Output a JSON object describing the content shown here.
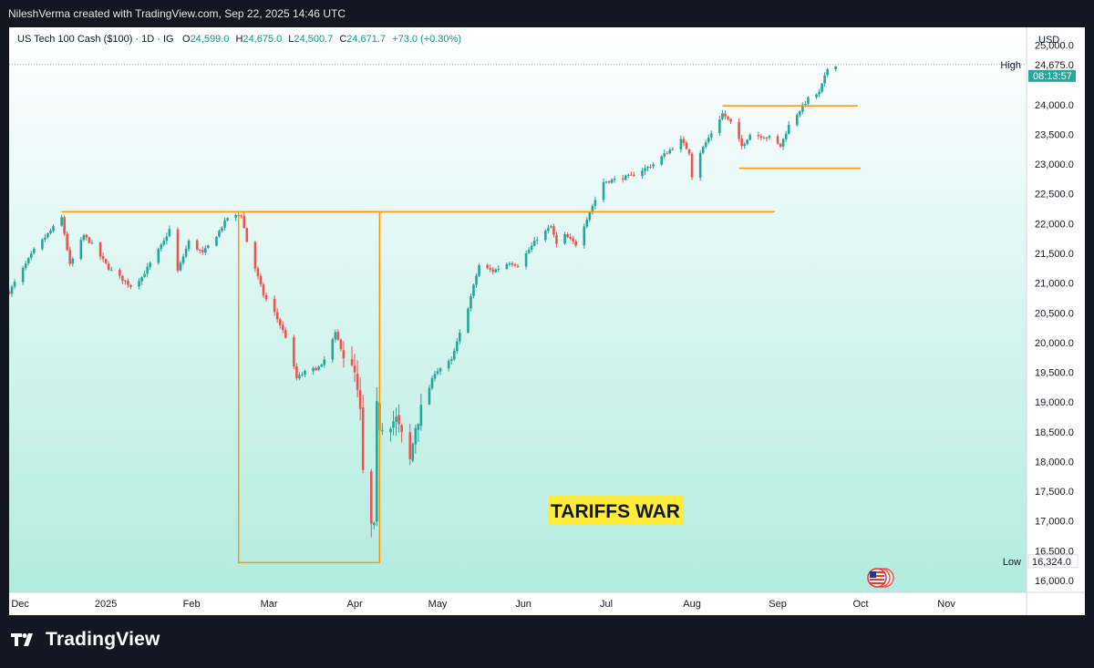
{
  "header": {
    "attribution": "NileshVerma created with TradingView.com, Sep 22, 2025 14:46 UTC"
  },
  "legend": {
    "symbol": "US Tech 100 Cash ($100) · 1D · IG",
    "open_label": "O",
    "open": "24,599.0",
    "high_label": "H",
    "high": "24,675.0",
    "low_label": "L",
    "low": "24,500.7",
    "close_label": "C",
    "close": "24,671.7",
    "change": "+73.0 (+0.30%)"
  },
  "price_scale": {
    "currency": "USD",
    "ticks": [
      "25,000.0",
      "24,000.0",
      "23,500.0",
      "23,000.0",
      "22,500.0",
      "22,000.0",
      "21,500.0",
      "21,000.0",
      "20,500.0",
      "20,000.0",
      "19,500.0",
      "19,000.0",
      "18,500.0",
      "18,000.0",
      "17,500.0",
      "17,000.0",
      "16,500.0",
      "16,000.0"
    ],
    "high_label": "High",
    "high_value": "24,675.0",
    "countdown": "08:13:57",
    "low_label": "Low",
    "low_value": "16,324.0"
  },
  "time_axis": {
    "labels": [
      "Dec",
      "2025",
      "Feb",
      "Mar",
      "Apr",
      "May",
      "Jun",
      "Jul",
      "Aug",
      "Sep",
      "Oct",
      "Nov"
    ]
  },
  "annotation": {
    "text": "TARIFFS WAR"
  },
  "footer": {
    "brand": "TradingView"
  },
  "colors": {
    "up": "#26a69a",
    "down": "#ef5350",
    "drawing": "#ff9800",
    "annotation_bg": "#ffeb3b",
    "badge": "#26a69a",
    "bg_top": "#ffffff",
    "bg_bottom": "#b2ebe0"
  },
  "chart_data": {
    "type": "candlestick",
    "x_range": [
      "2024-11-27",
      "2025-11-30"
    ],
    "y_range": [
      15800,
      25300
    ],
    "anchors": [
      [
        "2024-11-27",
        20850
      ],
      [
        "2024-12-06",
        21550
      ],
      [
        "2024-12-16",
        22100
      ],
      [
        "2024-12-19",
        21300
      ],
      [
        "2024-12-24",
        21800
      ],
      [
        "2024-12-27",
        21650
      ],
      [
        "2025-01-02",
        21250
      ],
      [
        "2025-01-10",
        20950
      ],
      [
        "2025-01-14",
        21100
      ],
      [
        "2025-01-22",
        21700
      ],
      [
        "2025-01-24",
        21900
      ],
      [
        "2025-01-27",
        21200
      ],
      [
        "2025-01-31",
        21700
      ],
      [
        "2025-02-05",
        21500
      ],
      [
        "2025-02-10",
        21800
      ],
      [
        "2025-02-14",
        22100
      ],
      [
        "2025-02-19",
        22150
      ],
      [
        "2025-02-21",
        21700
      ],
      [
        "2025-02-27",
        20800
      ],
      [
        "2025-03-03",
        20500
      ],
      [
        "2025-03-07",
        20100
      ],
      [
        "2025-03-11",
        19400
      ],
      [
        "2025-03-14",
        19500
      ],
      [
        "2025-03-20",
        19600
      ],
      [
        "2025-03-25",
        20150
      ],
      [
        "2025-03-28",
        19800
      ],
      [
        "2025-04-01",
        19450
      ],
      [
        "2025-04-03",
        18800
      ],
      [
        "2025-04-04",
        17800
      ],
      [
        "2025-04-07",
        16900
      ],
      [
        "2025-04-08",
        16850
      ],
      [
        "2025-04-09",
        18900
      ],
      [
        "2025-04-10",
        18600
      ],
      [
        "2025-04-16",
        18700
      ],
      [
        "2025-04-21",
        18000
      ],
      [
        "2025-04-23",
        18600
      ],
      [
        "2025-04-30",
        19500
      ],
      [
        "2025-05-06",
        19700
      ],
      [
        "2025-05-12",
        20600
      ],
      [
        "2025-05-16",
        21300
      ],
      [
        "2025-05-21",
        21200
      ],
      [
        "2025-05-27",
        21350
      ],
      [
        "2025-05-30",
        21300
      ],
      [
        "2025-06-06",
        21750
      ],
      [
        "2025-06-11",
        21950
      ],
      [
        "2025-06-13",
        21650
      ],
      [
        "2025-06-16",
        21800
      ],
      [
        "2025-06-20",
        21650
      ],
      [
        "2025-06-25",
        22200
      ],
      [
        "2025-06-30",
        22700
      ],
      [
        "2025-07-10",
        22800
      ],
      [
        "2025-07-18",
        23000
      ],
      [
        "2025-07-28",
        23400
      ],
      [
        "2025-07-31",
        23200
      ],
      [
        "2025-08-01",
        22800
      ],
      [
        "2025-08-04",
        23200
      ],
      [
        "2025-08-12",
        23850
      ],
      [
        "2025-08-15",
        23700
      ],
      [
        "2025-08-19",
        23300
      ],
      [
        "2025-08-22",
        23500
      ],
      [
        "2025-08-29",
        23450
      ],
      [
        "2025-09-02",
        23300
      ],
      [
        "2025-09-05",
        23650
      ],
      [
        "2025-09-12",
        24100
      ],
      [
        "2025-09-16",
        24200
      ],
      [
        "2025-09-19",
        24600
      ],
      [
        "2025-09-22",
        24672
      ]
    ],
    "time_ticks": [
      [
        "2024-12-01",
        "Dec"
      ],
      [
        "2025-01-01",
        "2025"
      ],
      [
        "2025-02-01",
        "Feb"
      ],
      [
        "2025-03-01",
        "Mar"
      ],
      [
        "2025-04-01",
        "Apr"
      ],
      [
        "2025-05-01",
        "May"
      ],
      [
        "2025-06-01",
        "Jun"
      ],
      [
        "2025-07-01",
        "Jul"
      ],
      [
        "2025-08-01",
        "Aug"
      ],
      [
        "2025-09-01",
        "Sep"
      ],
      [
        "2025-10-01",
        "Oct"
      ],
      [
        "2025-11-01",
        "Nov"
      ]
    ],
    "price_ticks": [
      25000,
      24000,
      23500,
      23000,
      22500,
      22000,
      21500,
      21000,
      20500,
      20000,
      19500,
      19000,
      18500,
      18000,
      17500,
      17000,
      16500,
      16000
    ],
    "high": 24675.0,
    "low": 16324.0,
    "drawings": {
      "resistance_line": {
        "from": [
          "2024-12-16",
          22200
        ],
        "to": [
          "2025-08-31",
          22200
        ]
      },
      "tariff_box": {
        "from": [
          "2025-02-18",
          22200
        ],
        "to": [
          "2025-04-10",
          16300
        ]
      },
      "range_top": {
        "from": [
          "2025-08-12",
          23980
        ],
        "to": [
          "2025-09-30",
          23980
        ]
      },
      "range_bottom": {
        "from": [
          "2025-08-18",
          22930
        ],
        "to": [
          "2025-10-01",
          22930
        ]
      }
    }
  }
}
